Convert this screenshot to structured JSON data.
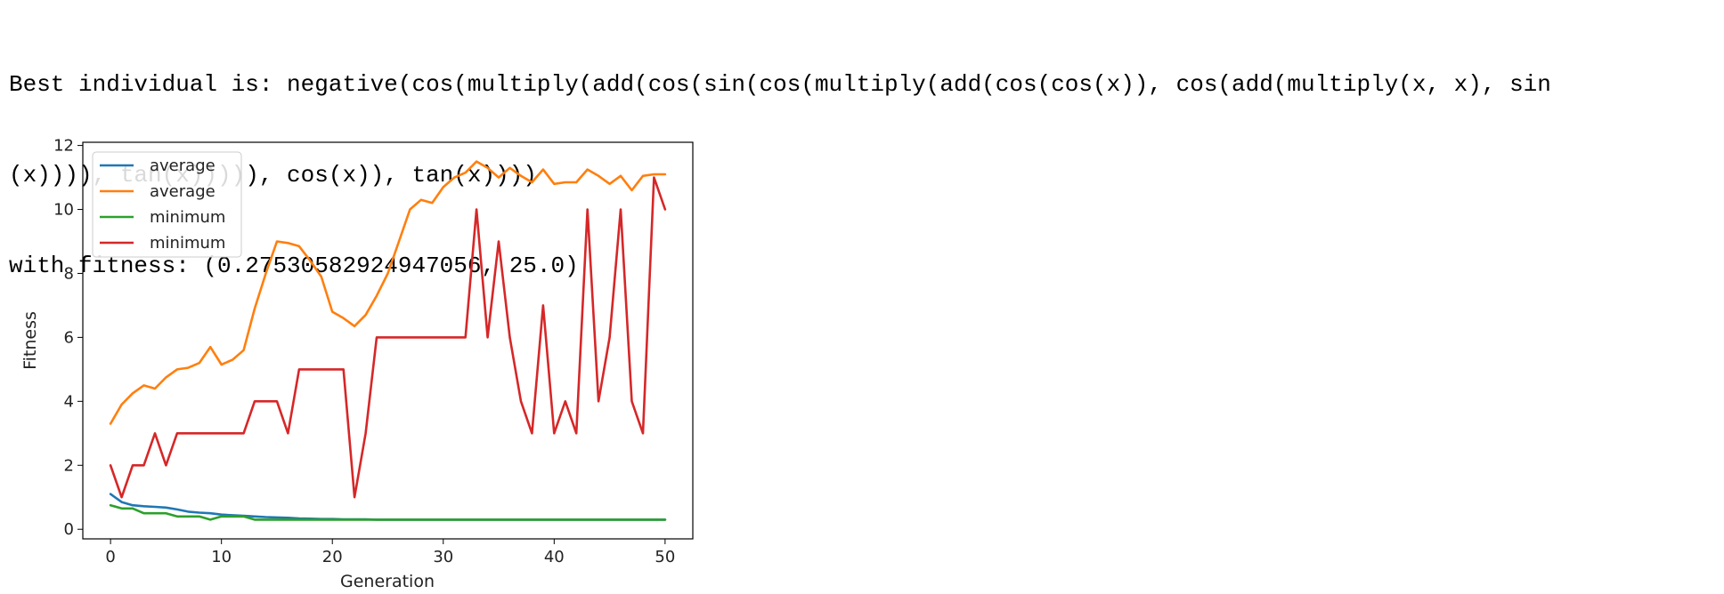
{
  "output": {
    "line1": "Best individual is: negative(cos(multiply(add(cos(sin(cos(multiply(add(cos(cos(x)), cos(add(multiply(x, x), sin",
    "line2": "(x)))), tan(x))))), cos(x)), tan(x))))",
    "line3": "with fitness: (0.27530582924947056, 25.0)"
  },
  "chart_data": {
    "type": "line",
    "xlabel": "Generation",
    "ylabel": "Fitness",
    "xlim": [
      -2.5,
      52.5
    ],
    "ylim": [
      -0.3,
      12.1
    ],
    "xticks": [
      0,
      10,
      20,
      30,
      40,
      50
    ],
    "yticks": [
      0,
      2,
      4,
      6,
      8,
      10,
      12
    ],
    "grid": false,
    "legend_position": "upper-left",
    "x": [
      0,
      1,
      2,
      3,
      4,
      5,
      6,
      7,
      8,
      9,
      10,
      11,
      12,
      13,
      14,
      15,
      16,
      17,
      18,
      19,
      20,
      21,
      22,
      23,
      24,
      25,
      26,
      27,
      28,
      29,
      30,
      31,
      32,
      33,
      34,
      35,
      36,
      37,
      38,
      39,
      40,
      41,
      42,
      43,
      44,
      45,
      46,
      47,
      48,
      49,
      50
    ],
    "series": [
      {
        "name": "average",
        "color": "#1f77b4",
        "values": [
          1.1,
          0.85,
          0.75,
          0.72,
          0.7,
          0.68,
          0.62,
          0.55,
          0.52,
          0.5,
          0.46,
          0.44,
          0.42,
          0.4,
          0.38,
          0.37,
          0.36,
          0.34,
          0.33,
          0.32,
          0.32,
          0.31,
          0.31,
          0.31,
          0.3,
          0.3,
          0.3,
          0.3,
          0.3,
          0.3,
          0.3,
          0.3,
          0.3,
          0.3,
          0.3,
          0.3,
          0.3,
          0.3,
          0.3,
          0.3,
          0.3,
          0.3,
          0.3,
          0.3,
          0.3,
          0.3,
          0.3,
          0.3,
          0.3,
          0.3,
          0.3
        ]
      },
      {
        "name": "average",
        "color": "#ff7f0e",
        "values": [
          3.3,
          3.9,
          4.25,
          4.5,
          4.4,
          4.75,
          5.0,
          5.05,
          5.2,
          5.7,
          5.15,
          5.3,
          5.6,
          6.9,
          8.0,
          9.0,
          8.95,
          8.85,
          8.4,
          7.9,
          6.8,
          6.6,
          6.35,
          6.7,
          7.3,
          8.0,
          9.0,
          10.0,
          10.3,
          10.2,
          10.7,
          11.0,
          11.15,
          11.5,
          11.3,
          11.0,
          11.3,
          11.05,
          10.85,
          11.25,
          10.8,
          10.85,
          10.85,
          11.25,
          11.05,
          10.8,
          11.05,
          10.6,
          11.05,
          11.1,
          11.1
        ]
      },
      {
        "name": "minimum",
        "color": "#2ca02c",
        "values": [
          0.75,
          0.65,
          0.65,
          0.5,
          0.5,
          0.5,
          0.4,
          0.4,
          0.4,
          0.3,
          0.4,
          0.4,
          0.4,
          0.3,
          0.3,
          0.3,
          0.3,
          0.3,
          0.3,
          0.3,
          0.3,
          0.3,
          0.3,
          0.3,
          0.3,
          0.3,
          0.3,
          0.3,
          0.3,
          0.3,
          0.3,
          0.3,
          0.3,
          0.3,
          0.3,
          0.3,
          0.3,
          0.3,
          0.3,
          0.3,
          0.3,
          0.3,
          0.3,
          0.3,
          0.3,
          0.3,
          0.3,
          0.3,
          0.3,
          0.3,
          0.3
        ]
      },
      {
        "name": "minimum",
        "color": "#d62728",
        "values": [
          2,
          1,
          2,
          2,
          3,
          2,
          3,
          3,
          3,
          3,
          3,
          3,
          3,
          4,
          4,
          4,
          3,
          5,
          5,
          5,
          5,
          5,
          1,
          3,
          6,
          6,
          6,
          6,
          6,
          6,
          6,
          6,
          6,
          10,
          6,
          9,
          6,
          4,
          3,
          7,
          3,
          4,
          3,
          10,
          4,
          6,
          10,
          4,
          3,
          11,
          10
        ]
      }
    ]
  }
}
